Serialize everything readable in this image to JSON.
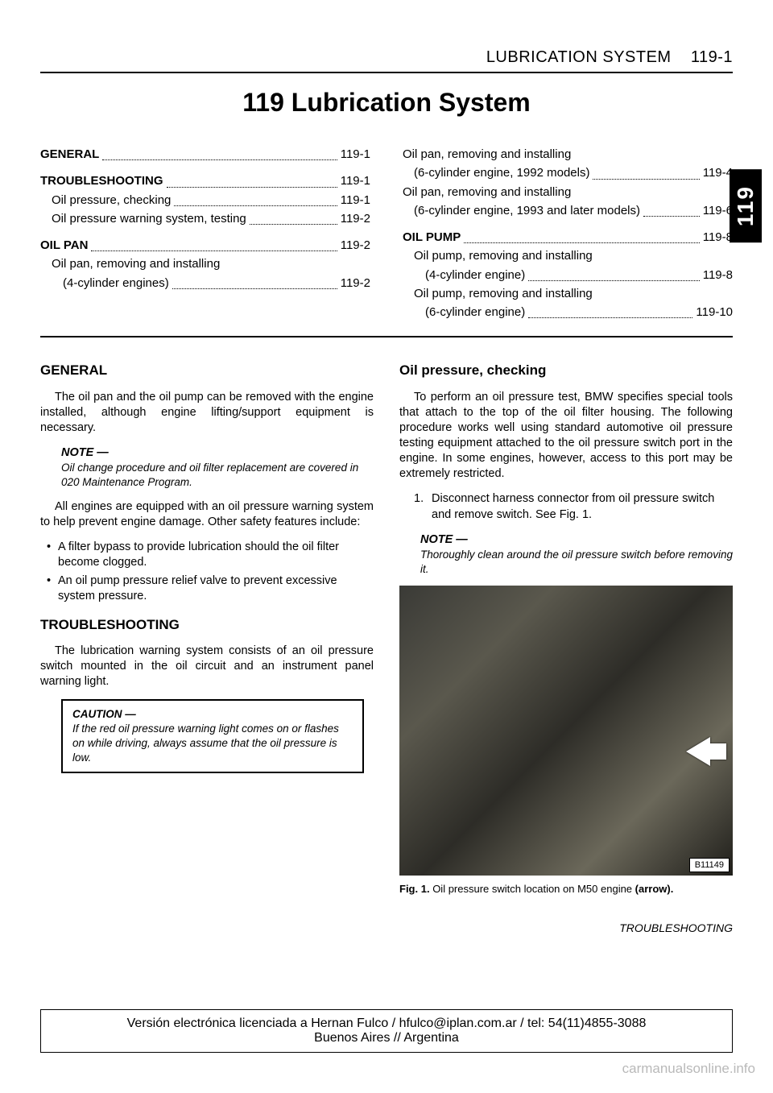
{
  "header": {
    "running_head_chapter": "LUBRICATION SYSTEM",
    "running_head_page": "119-1",
    "chapter_title": "119 Lubrication System",
    "side_tab": "119"
  },
  "toc": {
    "left": [
      {
        "label": "GENERAL",
        "page": "119-1",
        "style": "bold"
      },
      {
        "gap": true
      },
      {
        "label": "TROUBLESHOOTING",
        "page": "119-1",
        "style": "bold"
      },
      {
        "label": "Oil pressure, checking",
        "page": "119-1",
        "style": "sub"
      },
      {
        "label": "Oil pressure warning system, testing",
        "page": "119-2",
        "style": "sub"
      },
      {
        "gap": true
      },
      {
        "label": "OIL PAN",
        "page": "119-2",
        "style": "bold"
      },
      {
        "label": "Oil pan, removing and installing",
        "page": "",
        "style": "sub",
        "nodots": true
      },
      {
        "label": "(4-cylinder engines)",
        "page": "119-2",
        "style": "sub2"
      }
    ],
    "right": [
      {
        "label": "Oil pan, removing and installing",
        "page": "",
        "style": "",
        "nodots": true
      },
      {
        "label": "(6-cylinder engine, 1992 models)",
        "page": "119-4",
        "style": "sub"
      },
      {
        "label": "Oil pan, removing and installing",
        "page": "",
        "style": "",
        "nodots": true
      },
      {
        "label": "(6-cylinder engine, 1993 and later models)",
        "page": "119-6",
        "style": "sub"
      },
      {
        "gap": true
      },
      {
        "label": "OIL PUMP",
        "page": "119-8",
        "style": "bold"
      },
      {
        "label": "Oil pump, removing and installing",
        "page": "",
        "style": "sub",
        "nodots": true
      },
      {
        "label": "(4-cylinder engine)",
        "page": "119-8",
        "style": "sub2"
      },
      {
        "label": "Oil pump, removing and installing",
        "page": "",
        "style": "sub",
        "nodots": true
      },
      {
        "label": "(6-cylinder engine)",
        "page": "119-10",
        "style": "sub2"
      }
    ]
  },
  "left_col": {
    "h_general": "GENERAL",
    "p1": "The oil pan and the oil pump can be removed with the engine installed, although engine lifting/support equipment is necessary.",
    "note1_head": "NOTE —",
    "note1_body": "Oil change procedure and oil filter replacement are covered in 020 Maintenance Program.",
    "p2": "All engines are equipped with an oil pressure warning system to help prevent engine damage. Other safety features include:",
    "bul1": "A filter bypass to provide lubrication should the oil filter become clogged.",
    "bul2": "An oil pump pressure relief valve to prevent excessive system pressure.",
    "h_trouble": "TROUBLESHOOTING",
    "p3": "The lubrication warning system consists of an oil pressure switch mounted in the oil circuit and an instrument panel warning light.",
    "caution_head": "CAUTION —",
    "caution_body": "If the red oil pressure warning light comes on or flashes on while driving, always assume that the oil pressure is low."
  },
  "right_col": {
    "h_oilpress": "Oil pressure, checking",
    "p1": "To perform an oil pressure test, BMW specifies special tools that attach to the top of the oil filter housing. The following procedure works well using standard automotive oil pressure testing equipment attached to the oil pressure switch port in the engine. In some engines, however, access to this port may be extremely restricted.",
    "step1_num": "1.",
    "step1": "Disconnect harness connector from oil pressure switch and remove switch. See Fig. 1.",
    "note_head": "NOTE —",
    "note_body": "Thoroughly clean around the oil pressure switch before removing it.",
    "img_id": "B11149",
    "fig_label": "Fig. 1.",
    "fig_text": "Oil pressure switch location on M50 engine ",
    "fig_bold": "(arrow).",
    "footer_section": "TROUBLESHOOTING"
  },
  "license": {
    "line1": "Versión electrónica licenciada a Hernan Fulco / hfulco@iplan.com.ar / tel: 54(11)4855-3088",
    "line2": "Buenos Aires // Argentina"
  },
  "watermark": "carmanualsonline.info"
}
